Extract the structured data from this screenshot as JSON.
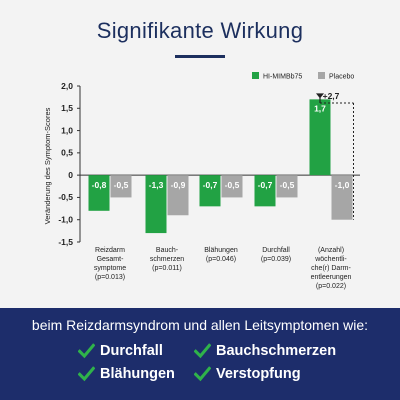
{
  "header": {
    "title": "Signifikante Wirkung"
  },
  "chart_data": {
    "type": "bar",
    "ylabel": "Veränderung des Symptom-Scores",
    "ylim": [
      -1.5,
      2.0
    ],
    "yticks": [
      "2,0",
      "1,5",
      "1,0",
      "0,5",
      "0",
      "-0,5",
      "-1,0",
      "-1,5"
    ],
    "ytick_values": [
      2.0,
      1.5,
      1.0,
      0.5,
      0,
      -0.5,
      -1.0,
      -1.5
    ],
    "categories": [
      "Reizdarm Gesamt-symptome (p=0.013)",
      "Bauch-schmerzen (p=0.011)",
      "Blähungen (p=0.046)",
      "Durchfall (p=0.039)",
      "(Anzahl) wöchentli-che(r) Darm-entleerungen (p=0.022)"
    ],
    "category_lines": [
      [
        "Reizdarm",
        "Gesamt-",
        "symptome",
        "(p=0.013)"
      ],
      [
        "Bauch-",
        "schmerzen",
        "(p=0.011)"
      ],
      [
        "Blähungen",
        "(p=0.046)"
      ],
      [
        "Durchfall",
        "(p=0.039)"
      ],
      [
        "(Anzahl)",
        "wöchentli-",
        "che(r) Darm-",
        "entleerungen",
        "(p=0.022)"
      ]
    ],
    "series": [
      {
        "name": "HI-MIMBb75",
        "color": "#22a244",
        "values": [
          -0.8,
          -1.3,
          -0.7,
          -0.7,
          1.7
        ],
        "labels": [
          "-0,8",
          "-1,3",
          "-0,7",
          "-0,7",
          "1,7"
        ]
      },
      {
        "name": "Placebo",
        "color": "#a6a6a6",
        "values": [
          -0.5,
          -0.9,
          -0.5,
          -0.5,
          -1.0
        ],
        "labels": [
          "-0,5",
          "-0,9",
          "-0,5",
          "-0,5",
          "-1,0"
        ]
      }
    ],
    "legend": "top-right",
    "annotation": {
      "text": "+2,7",
      "category": 4
    }
  },
  "footer": {
    "tagline": "beim Reizdarmsyndrom und allen Leitsymptomen wie:",
    "symptoms": [
      "Durchfall",
      "Bauchschmerzen",
      "Blähungen",
      "Verstopfung"
    ],
    "check_color": "#2fb34a",
    "check_icon": "check-icon"
  }
}
